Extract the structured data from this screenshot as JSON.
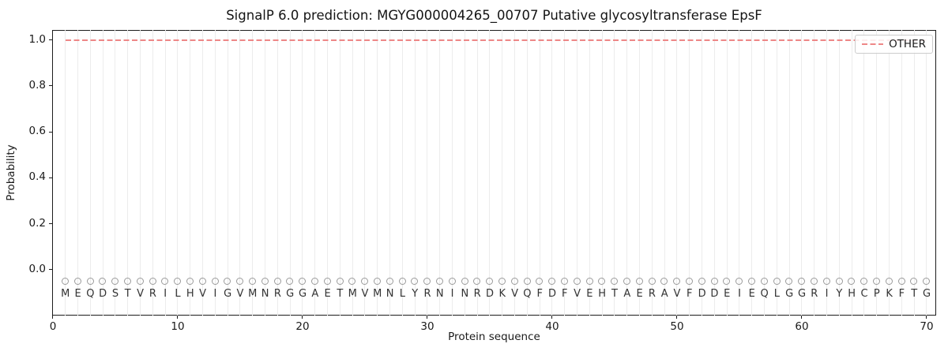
{
  "legend": {
    "label": "OTHER"
  },
  "colors": {
    "other_line": "#ee8787",
    "grid": "#ececec",
    "marker": "#9a9a9a",
    "spine": "#1c1c1c",
    "text": "#1a1a1a",
    "legend_border": "#cccccc"
  },
  "chart_data": {
    "type": "line",
    "title": "SignalP 6.0 prediction: MGYG000004265_00707 Putative glycosyltransferase EpsF",
    "xlabel": "Protein sequence",
    "ylabel": "Probability",
    "xlim": [
      -0.063,
      70.76
    ],
    "ylim": [
      -0.199,
      1.043
    ],
    "xticks": [
      "0",
      "10",
      "20",
      "30",
      "40",
      "50",
      "60",
      "70"
    ],
    "yticks": [
      "0.0",
      "0.2",
      "0.4",
      "0.6",
      "0.8",
      "1.0"
    ],
    "grid": "vertical line at every residue position 1-70",
    "legend_position": "upper right",
    "series": [
      {
        "name": "OTHER",
        "color": "#ee8787",
        "linestyle": "dashed",
        "x_start": 1,
        "x_end": 70,
        "constant_y": 1.0,
        "note": "OTHER probability is constant at 1.0 for all 70 residues"
      }
    ],
    "sequence": "MEQDSTVRILHVIGVMNRGGAETMVMNLYRNINRDKVQFDFVEHTAERAVFDDEIEQLGGRIYHCPKFTG",
    "sequence_marker": {
      "symbol": "open-circle",
      "color": "#9a9a9a",
      "marker_y": -0.05,
      "letter_y": -0.107
    }
  }
}
